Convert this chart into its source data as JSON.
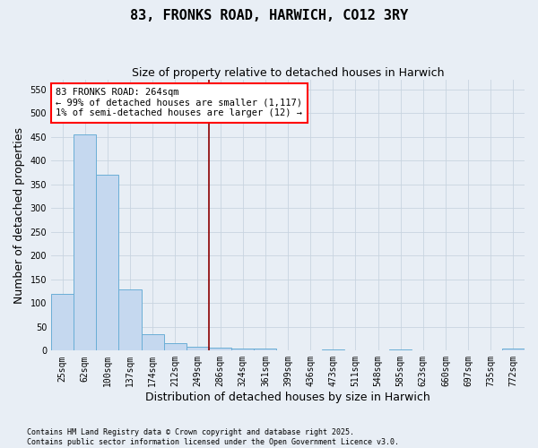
{
  "title": "83, FRONKS ROAD, HARWICH, CO12 3RY",
  "subtitle": "Size of property relative to detached houses in Harwich",
  "xlabel": "Distribution of detached houses by size in Harwich",
  "ylabel": "Number of detached properties",
  "categories": [
    "25sqm",
    "62sqm",
    "100sqm",
    "137sqm",
    "174sqm",
    "212sqm",
    "249sqm",
    "286sqm",
    "324sqm",
    "361sqm",
    "399sqm",
    "436sqm",
    "473sqm",
    "511sqm",
    "548sqm",
    "585sqm",
    "623sqm",
    "660sqm",
    "697sqm",
    "735sqm",
    "772sqm"
  ],
  "values": [
    120,
    455,
    370,
    128,
    35,
    15,
    9,
    7,
    5,
    5,
    1,
    0,
    2,
    0,
    0,
    2,
    0,
    0,
    0,
    0,
    4
  ],
  "bar_color": "#c5d8ef",
  "bar_edge_color": "#6aaed6",
  "vline_index": 7,
  "vline_color": "#8b0000",
  "annotation_text": "83 FRONKS ROAD: 264sqm\n← 99% of detached houses are smaller (1,117)\n1% of semi-detached houses are larger (12) →",
  "annotation_box_color": "white",
  "annotation_box_edge_color": "red",
  "ylim": [
    0,
    570
  ],
  "yticks": [
    0,
    50,
    100,
    150,
    200,
    250,
    300,
    350,
    400,
    450,
    500,
    550
  ],
  "background_color": "#e8eef5",
  "grid_color": "#c8d4e0",
  "footnote": "Contains HM Land Registry data © Crown copyright and database right 2025.\nContains public sector information licensed under the Open Government Licence v3.0.",
  "title_fontsize": 11,
  "subtitle_fontsize": 9,
  "xlabel_fontsize": 9,
  "ylabel_fontsize": 9,
  "tick_fontsize": 7,
  "annotation_fontsize": 7.5,
  "footnote_fontsize": 6
}
